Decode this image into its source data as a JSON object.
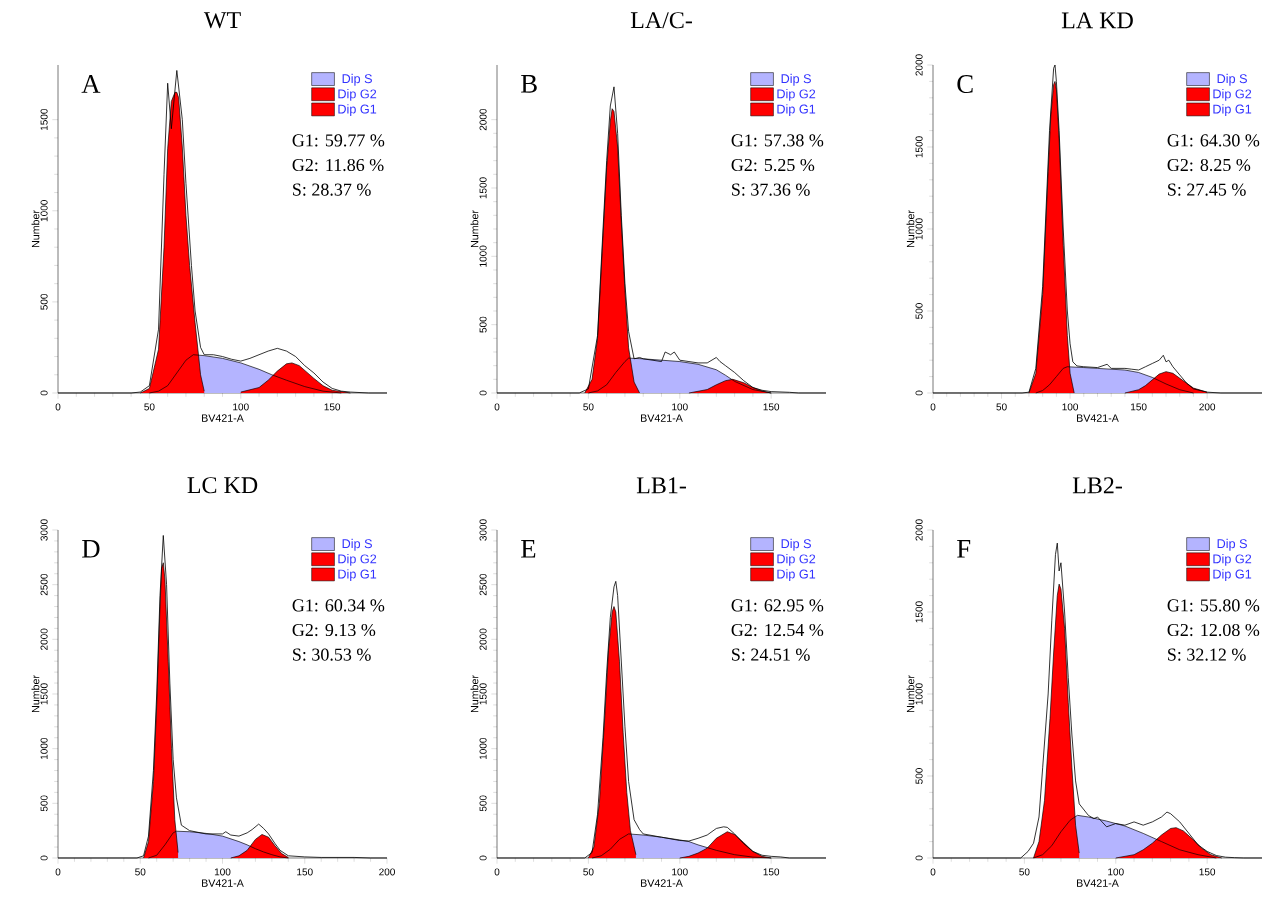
{
  "chart_data": [
    {
      "type": "area",
      "title": "WT",
      "xlabel": "BV421-A",
      "ylabel": "Number",
      "xlim": [
        0,
        180
      ],
      "ylim": [
        0,
        1800
      ],
      "xticks": [
        0,
        50,
        100,
        150
      ],
      "yticks": [
        0,
        500,
        1000,
        1500
      ],
      "legend": "top right",
      "annotations": [
        "A",
        "G1: 59.77 %",
        "G2: 11.86 %",
        "S: 28.37 %"
      ],
      "series": [
        {
          "name": "Dip G1",
          "color": "#ff0000",
          "x": [
            45,
            50,
            55,
            58,
            60,
            62,
            64,
            65,
            66,
            68,
            70,
            72,
            75,
            78,
            80
          ],
          "values": [
            0,
            25,
            240,
            800,
            1340,
            1600,
            1650,
            1650,
            1620,
            1350,
            975,
            700,
            385,
            100,
            10
          ]
        },
        {
          "name": "Dip G2",
          "color": "#ff0000",
          "x": [
            100,
            110,
            115,
            120,
            125,
            128,
            132,
            140,
            145,
            150,
            160
          ],
          "values": [
            5,
            30,
            70,
            120,
            160,
            165,
            150,
            80,
            40,
            15,
            0
          ]
        },
        {
          "name": "Dip S",
          "color": "#b4b4ff",
          "x": [
            50,
            55,
            60,
            65,
            70,
            74,
            80,
            90,
            100,
            110,
            117,
            125,
            135,
            145,
            155
          ],
          "values": [
            0,
            10,
            40,
            110,
            180,
            210,
            205,
            190,
            165,
            130,
            100,
            70,
            35,
            10,
            0
          ]
        },
        {
          "color": "#000000",
          "type": "line",
          "x": [
            0,
            40,
            45,
            50,
            55,
            58,
            60,
            62,
            65,
            68,
            70,
            73,
            75,
            78,
            80,
            85,
            90,
            95,
            100,
            105,
            110,
            115,
            120,
            125,
            130,
            135,
            140,
            145,
            150,
            155,
            160,
            170,
            180
          ],
          "values": [
            0,
            0,
            5,
            40,
            350,
            1200,
            1700,
            1450,
            1770,
            1500,
            1150,
            700,
            450,
            250,
            210,
            210,
            200,
            185,
            175,
            190,
            210,
            230,
            245,
            230,
            200,
            150,
            110,
            60,
            25,
            10,
            5,
            0,
            0
          ]
        }
      ]
    },
    {
      "type": "area",
      "title": "LA/C-",
      "xlabel": "BV421-A",
      "ylabel": "Number",
      "xlim": [
        0,
        180
      ],
      "ylim": [
        0,
        2400
      ],
      "xticks": [
        0,
        50,
        100,
        150
      ],
      "yticks": [
        0,
        500,
        1000,
        1500,
        2000
      ],
      "legend": "top right",
      "annotations": [
        "B",
        "G1: 57.38 %",
        "G2: 5.25 %",
        "S: 37.36 %"
      ],
      "series": [
        {
          "name": "Dip G1",
          "color": "#ff0000",
          "x": [
            48,
            52,
            55,
            58,
            60,
            62,
            63,
            64,
            66,
            68,
            70,
            72,
            75,
            78
          ],
          "values": [
            0,
            100,
            400,
            1150,
            1650,
            1990,
            2080,
            2060,
            1800,
            1250,
            750,
            330,
            80,
            0
          ]
        },
        {
          "name": "Dip G2",
          "color": "#ff0000",
          "x": [
            105,
            115,
            120,
            125,
            129,
            135,
            140,
            145,
            150
          ],
          "values": [
            0,
            25,
            60,
            90,
            100,
            75,
            40,
            15,
            0
          ]
        },
        {
          "name": "Dip S",
          "color": "#b4b4ff",
          "x": [
            50,
            55,
            60,
            65,
            70,
            72,
            80,
            90,
            100,
            110,
            120,
            125,
            130,
            140,
            150
          ],
          "values": [
            0,
            15,
            60,
            150,
            230,
            255,
            250,
            240,
            230,
            210,
            170,
            130,
            85,
            25,
            0
          ]
        },
        {
          "color": "#000000",
          "type": "line",
          "x": [
            0,
            45,
            50,
            55,
            58,
            60,
            62,
            64,
            66,
            68,
            70,
            72,
            75,
            78,
            80,
            85,
            90,
            92,
            95,
            97,
            100,
            105,
            110,
            115,
            120,
            122,
            125,
            130,
            135,
            140,
            145,
            150,
            160,
            165,
            170,
            180
          ],
          "values": [
            0,
            0,
            30,
            420,
            1200,
            1700,
            2100,
            2240,
            1900,
            1300,
            800,
            450,
            250,
            260,
            250,
            240,
            230,
            300,
            280,
            300,
            240,
            230,
            220,
            220,
            260,
            230,
            200,
            150,
            90,
            40,
            20,
            10,
            5,
            0,
            0,
            0
          ]
        }
      ]
    },
    {
      "type": "area",
      "title": "LA KD",
      "xlabel": "BV421-A",
      "ylabel": "Number",
      "xlim": [
        0,
        240
      ],
      "ylim": [
        0,
        2000
      ],
      "xticks": [
        0,
        50,
        100,
        150,
        200
      ],
      "yticks": [
        0,
        500,
        1000,
        1500,
        2000
      ],
      "legend": "top right",
      "annotations": [
        "C",
        "G1: 64.30 %",
        "G2: 8.25 %",
        "S: 27.45 %"
      ],
      "series": [
        {
          "name": "Dip G1",
          "color": "#ff0000",
          "x": [
            70,
            75,
            80,
            84,
            86,
            88,
            89,
            90,
            92,
            95,
            98,
            100,
            103
          ],
          "values": [
            0,
            120,
            600,
            1350,
            1700,
            1880,
            1900,
            1850,
            1550,
            900,
            350,
            120,
            0
          ]
        },
        {
          "name": "Dip G2",
          "color": "#ff0000",
          "x": [
            140,
            150,
            155,
            160,
            165,
            170,
            175,
            180,
            190,
            200
          ],
          "values": [
            0,
            20,
            45,
            80,
            115,
            130,
            120,
            90,
            30,
            5
          ]
        },
        {
          "name": "Dip S",
          "color": "#b4b4ff",
          "x": [
            75,
            80,
            85,
            90,
            95,
            98,
            110,
            120,
            130,
            140,
            150,
            160,
            170,
            180,
            190
          ],
          "values": [
            0,
            15,
            50,
            100,
            150,
            160,
            155,
            150,
            145,
            140,
            125,
            95,
            55,
            20,
            0
          ]
        },
        {
          "color": "#000000",
          "type": "line",
          "x": [
            0,
            65,
            70,
            75,
            80,
            85,
            88,
            89,
            90,
            92,
            95,
            98,
            100,
            102,
            105,
            110,
            120,
            127,
            130,
            140,
            145,
            150,
            155,
            160,
            165,
            168,
            170,
            172,
            175,
            180,
            185,
            190,
            200,
            210,
            240
          ],
          "values": [
            0,
            0,
            5,
            150,
            650,
            1600,
            1980,
            2000,
            1900,
            1600,
            1000,
            500,
            300,
            190,
            165,
            160,
            155,
            175,
            150,
            150,
            145,
            140,
            160,
            180,
            200,
            230,
            190,
            200,
            160,
            110,
            60,
            25,
            5,
            0,
            0
          ]
        }
      ]
    },
    {
      "type": "area",
      "title": "LC KD",
      "xlabel": "BV421-A",
      "ylabel": "Number",
      "xlim": [
        0,
        200
      ],
      "ylim": [
        0,
        3000
      ],
      "xticks": [
        0,
        50,
        100,
        150,
        200
      ],
      "yticks": [
        0,
        500,
        1000,
        1500,
        2000,
        2500,
        3000
      ],
      "legend": "top right",
      "annotations": [
        "D",
        "G1: 60.34 %",
        "G2: 9.13 %",
        "S: 30.53 %"
      ],
      "series": [
        {
          "name": "Dip G1",
          "color": "#ff0000",
          "x": [
            52,
            55,
            58,
            60,
            62,
            63,
            64,
            65,
            67,
            69,
            71,
            73
          ],
          "values": [
            0,
            150,
            700,
            1400,
            2300,
            2650,
            2700,
            2550,
            1800,
            1000,
            350,
            50
          ]
        },
        {
          "name": "Dip G2",
          "color": "#ff0000",
          "x": [
            105,
            110,
            115,
            120,
            124,
            128,
            132,
            136,
            140
          ],
          "values": [
            0,
            20,
            70,
            170,
            215,
            190,
            110,
            40,
            5
          ]
        },
        {
          "name": "Dip S",
          "color": "#b4b4ff",
          "x": [
            55,
            60,
            65,
            70,
            72,
            80,
            90,
            100,
            110,
            115,
            120,
            125,
            130,
            135,
            140
          ],
          "values": [
            0,
            25,
            120,
            230,
            245,
            240,
            225,
            200,
            150,
            120,
            85,
            55,
            30,
            10,
            0
          ]
        },
        {
          "color": "#000000",
          "type": "line",
          "x": [
            0,
            48,
            52,
            55,
            58,
            60,
            62,
            64,
            66,
            68,
            70,
            72,
            75,
            80,
            90,
            100,
            102,
            105,
            110,
            115,
            118,
            122,
            125,
            128,
            132,
            135,
            140,
            150,
            160,
            180,
            190,
            200
          ],
          "values": [
            0,
            0,
            20,
            200,
            800,
            1500,
            2400,
            2950,
            2500,
            1600,
            900,
            550,
            300,
            250,
            220,
            220,
            240,
            210,
            200,
            230,
            260,
            310,
            270,
            220,
            130,
            70,
            20,
            10,
            5,
            5,
            0,
            0
          ]
        }
      ]
    },
    {
      "type": "area",
      "title": "LB1-",
      "xlabel": "BV421-A",
      "ylabel": "Number",
      "xlim": [
        0,
        180
      ],
      "ylim": [
        0,
        3000
      ],
      "xticks": [
        0,
        50,
        100,
        150
      ],
      "yticks": [
        0,
        500,
        1000,
        1500,
        2000,
        2500,
        3000
      ],
      "legend": "top right",
      "annotations": [
        "E",
        "G1: 62.95 %",
        "G2: 12.54 %",
        "S: 24.51 %"
      ],
      "series": [
        {
          "name": "Dip G1",
          "color": "#ff0000",
          "x": [
            50,
            53,
            56,
            59,
            61,
            63,
            64,
            65,
            67,
            69,
            71,
            73,
            76
          ],
          "values": [
            0,
            100,
            500,
            1300,
            1900,
            2250,
            2300,
            2250,
            1800,
            1150,
            600,
            250,
            30
          ]
        },
        {
          "name": "Dip G2",
          "color": "#ff0000",
          "x": [
            100,
            105,
            110,
            115,
            120,
            126,
            130,
            135,
            140,
            145,
            150
          ],
          "values": [
            0,
            15,
            45,
            90,
            180,
            240,
            215,
            140,
            60,
            15,
            0
          ]
        },
        {
          "name": "Dip S",
          "color": "#b4b4ff",
          "x": [
            52,
            57,
            62,
            67,
            72,
            80,
            90,
            100,
            105,
            110,
            115,
            120,
            130,
            140,
            150
          ],
          "values": [
            0,
            20,
            80,
            170,
            220,
            210,
            190,
            165,
            150,
            120,
            95,
            70,
            30,
            8,
            0
          ]
        },
        {
          "color": "#000000",
          "type": "line",
          "x": [
            0,
            48,
            52,
            55,
            58,
            60,
            62,
            64,
            65,
            66,
            68,
            70,
            72,
            75,
            78,
            80,
            90,
            100,
            105,
            110,
            115,
            120,
            124,
            126,
            130,
            135,
            140,
            145,
            150,
            155,
            160,
            180
          ],
          "values": [
            0,
            0,
            50,
            400,
            1100,
            1700,
            2200,
            2480,
            2530,
            2400,
            1800,
            1200,
            700,
            350,
            260,
            220,
            190,
            160,
            155,
            180,
            210,
            270,
            285,
            280,
            220,
            130,
            60,
            25,
            15,
            10,
            0,
            0
          ]
        }
      ]
    },
    {
      "type": "area",
      "title": "LB2-",
      "xlabel": "BV421-A",
      "ylabel": "Number",
      "xlim": [
        0,
        180
      ],
      "ylim": [
        0,
        2000
      ],
      "xticks": [
        0,
        50,
        100,
        150
      ],
      "yticks": [
        0,
        500,
        1000,
        1500,
        2000
      ],
      "legend": "top right",
      "annotations": [
        "F",
        "G1: 55.80 %",
        "G2: 12.08 %",
        "S: 32.12 %"
      ],
      "series": [
        {
          "name": "Dip G1",
          "color": "#ff0000",
          "x": [
            55,
            58,
            61,
            64,
            66,
            68,
            69,
            70,
            72,
            74,
            76,
            78,
            80
          ],
          "values": [
            0,
            100,
            350,
            850,
            1250,
            1600,
            1670,
            1640,
            1400,
            950,
            550,
            200,
            30
          ]
        },
        {
          "name": "Dip G2",
          "color": "#ff0000",
          "x": [
            100,
            110,
            115,
            120,
            125,
            130,
            133,
            137,
            142,
            147,
            152,
            158
          ],
          "values": [
            0,
            20,
            50,
            90,
            140,
            180,
            185,
            165,
            115,
            60,
            20,
            0
          ]
        },
        {
          "name": "Dip S",
          "color": "#b4b4ff",
          "x": [
            55,
            60,
            65,
            70,
            75,
            79,
            85,
            95,
            105,
            115,
            125,
            135,
            145,
            155
          ],
          "values": [
            0,
            20,
            75,
            160,
            230,
            260,
            250,
            225,
            195,
            150,
            100,
            50,
            20,
            0
          ]
        },
        {
          "color": "#000000",
          "type": "line",
          "x": [
            0,
            48,
            52,
            55,
            58,
            60,
            63,
            65,
            67,
            68,
            69,
            70,
            72,
            74,
            76,
            78,
            80,
            85,
            88,
            90,
            95,
            100,
            105,
            110,
            115,
            120,
            125,
            128,
            130,
            135,
            140,
            145,
            150,
            155,
            160,
            165,
            170,
            180
          ],
          "values": [
            0,
            0,
            40,
            90,
            250,
            550,
            1000,
            1450,
            1850,
            1920,
            1750,
            1800,
            1500,
            1100,
            750,
            470,
            330,
            260,
            240,
            250,
            190,
            210,
            200,
            220,
            200,
            220,
            250,
            280,
            270,
            220,
            150,
            80,
            40,
            15,
            5,
            2,
            0,
            0
          ]
        }
      ]
    }
  ]
}
